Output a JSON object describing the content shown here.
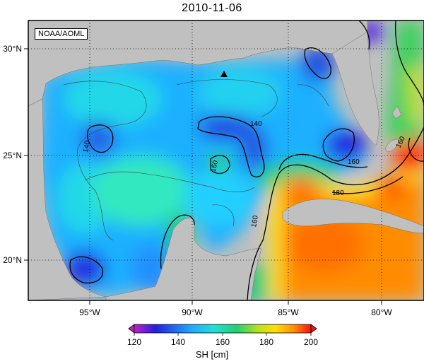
{
  "title": "2010-11-06",
  "credit": "NOAA/AOML",
  "lat_labels": [
    "30°N",
    "25°N",
    "20°N"
  ],
  "lon_labels": [
    "95°W",
    "90°W",
    "85°W",
    "80°W"
  ],
  "contour_labels": [
    "140",
    "160",
    "140",
    "160",
    "160",
    "180",
    "160",
    "160"
  ],
  "colorbar": {
    "ticks": [
      "120",
      "140",
      "160",
      "180",
      "200"
    ],
    "unit": "SH [cm]",
    "min": 120,
    "max": 200,
    "colors": [
      "#c020c8",
      "#2020e0",
      "#1fa8ff",
      "#21e0d8",
      "#20d070",
      "#b8e020",
      "#ffe000",
      "#ff9000",
      "#ff1010"
    ]
  },
  "colors": {
    "land": "#c0c0c0",
    "marker": "#000000"
  }
}
